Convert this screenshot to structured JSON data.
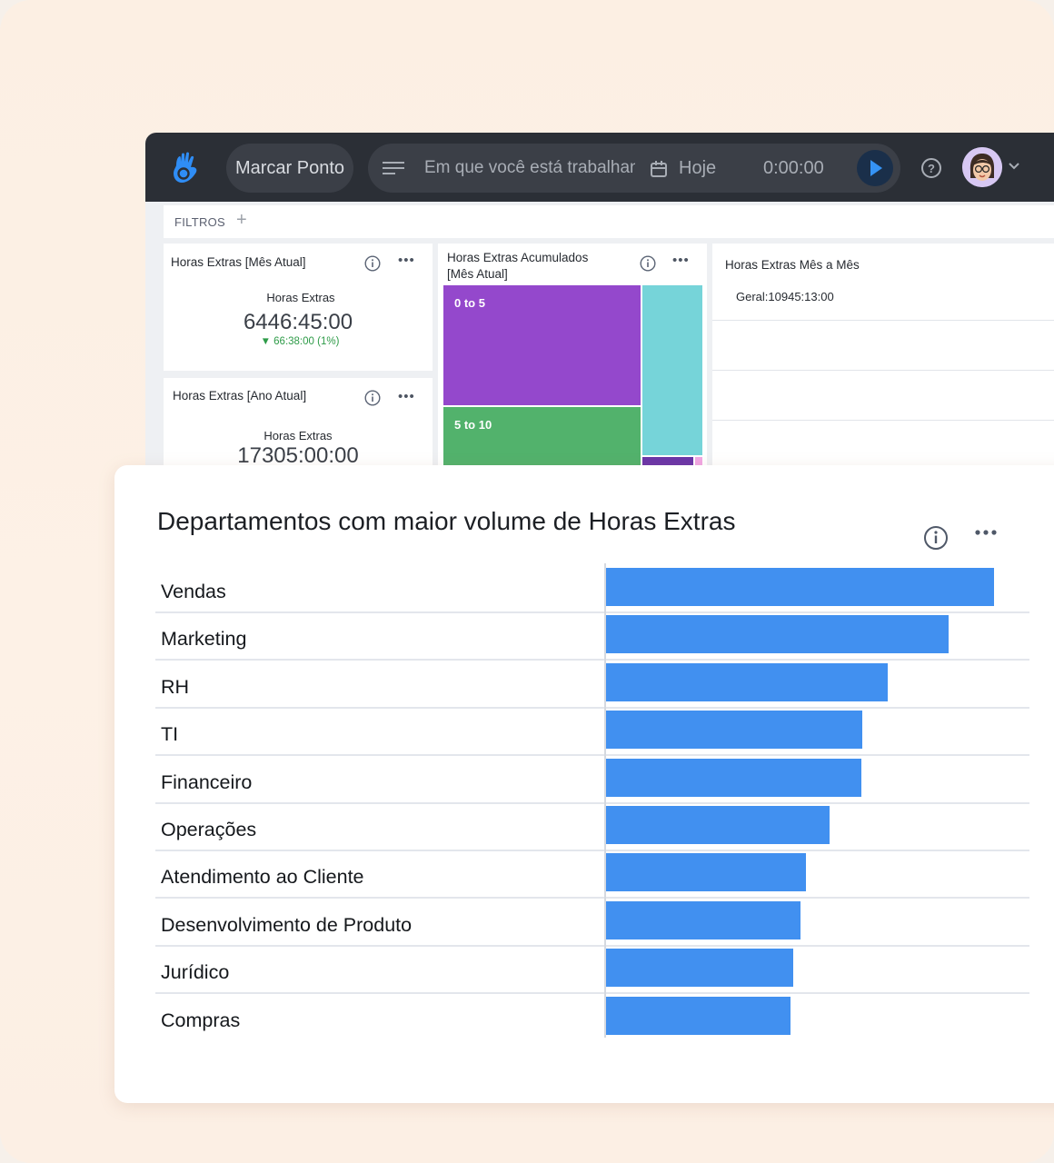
{
  "topbar": {
    "logo_icon": "hand-logo-icon",
    "clock_in_label": "Marcar Ponto",
    "task_placeholder": "Em que você está trabalhando?",
    "date_label": "Hoje",
    "timer_value": "0:00:00",
    "help_icon": "question-circle-icon",
    "avatar_icon": "user-avatar-icon"
  },
  "filters": {
    "label": "FILTROS",
    "add_symbol": "+"
  },
  "cards": {
    "month_overtime": {
      "title": "Horas Extras [Mês Atual]",
      "metric_label": "Horas Extras",
      "value": "6446:45:00",
      "delta": "▼ 66:38:00 (1%)"
    },
    "accumulated": {
      "title_line1": "Horas Extras Acumulados",
      "title_line2": "[Mês Atual]",
      "segments": [
        {
          "label": "0 to 5",
          "color": "#9448cc"
        },
        {
          "label": "5 to 10",
          "color": "#52b26c"
        },
        {
          "label": "",
          "color": "#76d4d9"
        },
        {
          "label": "",
          "color": "#6a35a8"
        },
        {
          "label": "",
          "color": "#f2a7e4"
        }
      ]
    },
    "month_by_month": {
      "title": "Horas Extras Mês a Mês",
      "summary_label": "Geral:",
      "summary_value": "10945:13:00"
    },
    "year_overtime": {
      "title": "Horas Extras [Ano Atual]",
      "metric_label": "Horas Extras",
      "value": "17305:00:00"
    }
  },
  "front_card": {
    "title": "Departamentos com maior volume de Horas Extras"
  },
  "chart_data": {
    "type": "bar",
    "orientation": "horizontal",
    "title": "Departamentos com maior volume de Horas Extras",
    "categories": [
      "Vendas",
      "Marketing",
      "RH",
      "TI",
      "Financeiro",
      "Operações",
      "Atendimento ao Cliente",
      "Desenvolvimento de Produto",
      "Jurídico",
      "Compras"
    ],
    "values": [
      100,
      88.3,
      72.6,
      66.1,
      65.9,
      57.8,
      51.7,
      50.2,
      48.4,
      47.7
    ],
    "value_unit": "relative (% of largest bar, estimated)",
    "bar_color": "#4190f0",
    "grid": false,
    "legend": "none"
  }
}
